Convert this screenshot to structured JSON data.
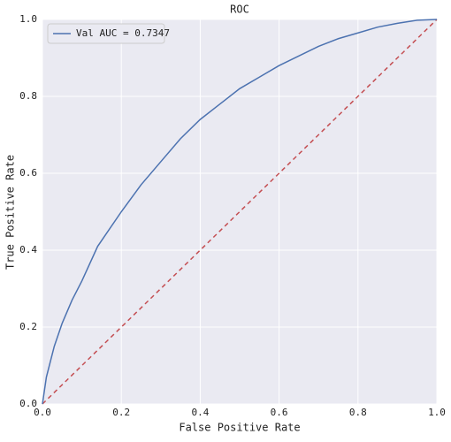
{
  "chart_data": {
    "type": "line",
    "title": "ROC",
    "xlabel": "False Positive Rate",
    "ylabel": "True Positive Rate",
    "series": [
      {
        "name": "Val AUC = 0.7347",
        "color": "#4c72b0",
        "x": [
          0,
          0.01,
          0.03,
          0.05,
          0.075,
          0.1,
          0.14,
          0.2,
          0.25,
          0.3,
          0.35,
          0.4,
          0.45,
          0.5,
          0.55,
          0.6,
          0.65,
          0.7,
          0.75,
          0.8,
          0.85,
          0.9,
          0.95,
          1
        ],
        "values": [
          0,
          0.07,
          0.15,
          0.21,
          0.27,
          0.32,
          0.41,
          0.5,
          0.57,
          0.63,
          0.69,
          0.74,
          0.78,
          0.82,
          0.85,
          0.88,
          0.905,
          0.93,
          0.95,
          0.965,
          0.98,
          0.99,
          0.998,
          1
        ]
      }
    ],
    "reference_line": {
      "x": [
        0,
        1
      ],
      "values": [
        0,
        1
      ],
      "color": "#c44e52",
      "dashed": true
    },
    "xlim": [
      0,
      1
    ],
    "ylim": [
      0,
      1
    ],
    "xticks": [
      {
        "value": 0,
        "label": "0.0"
      },
      0.2,
      0.4,
      0.6,
      0.8,
      {
        "value": 1,
        "label": "1.0"
      }
    ],
    "yticks": [
      {
        "value": 0,
        "label": "0.0"
      },
      0.2,
      0.4,
      0.6,
      0.8,
      {
        "value": 1,
        "label": "1.0"
      }
    ],
    "grid": true,
    "legend": "upper left",
    "background": "#eaeaf2"
  }
}
